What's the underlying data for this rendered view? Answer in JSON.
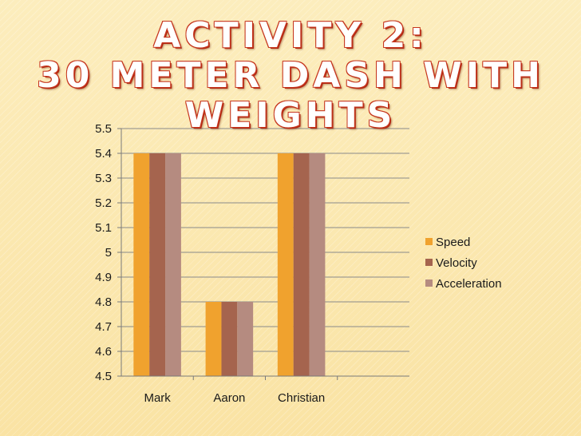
{
  "slide": {
    "title_line1": "ACTIVITY 2:",
    "title_line2": "30 METER DASH WITH",
    "title_line3": "WEIGHTS"
  },
  "chart_data": {
    "type": "bar",
    "categories": [
      "Mark",
      "Aaron",
      "Christian"
    ],
    "series": [
      {
        "name": "Speed",
        "values": [
          5.4,
          4.8,
          5.4
        ],
        "color": "#f0a22e"
      },
      {
        "name": "Velocity",
        "values": [
          5.4,
          4.8,
          5.4
        ],
        "color": "#a5644e"
      },
      {
        "name": "Acceleration",
        "values": [
          5.4,
          4.8,
          5.4
        ],
        "color": "#b58b80"
      }
    ],
    "ylim": [
      4.5,
      5.5
    ],
    "yticks": [
      "4.5",
      "4.6",
      "4.7",
      "4.8",
      "4.9",
      "5",
      "5.1",
      "5.2",
      "5.3",
      "5.4",
      "5.5"
    ],
    "grid": true,
    "legend": "right",
    "title": "",
    "xlabel": "",
    "ylabel": ""
  }
}
